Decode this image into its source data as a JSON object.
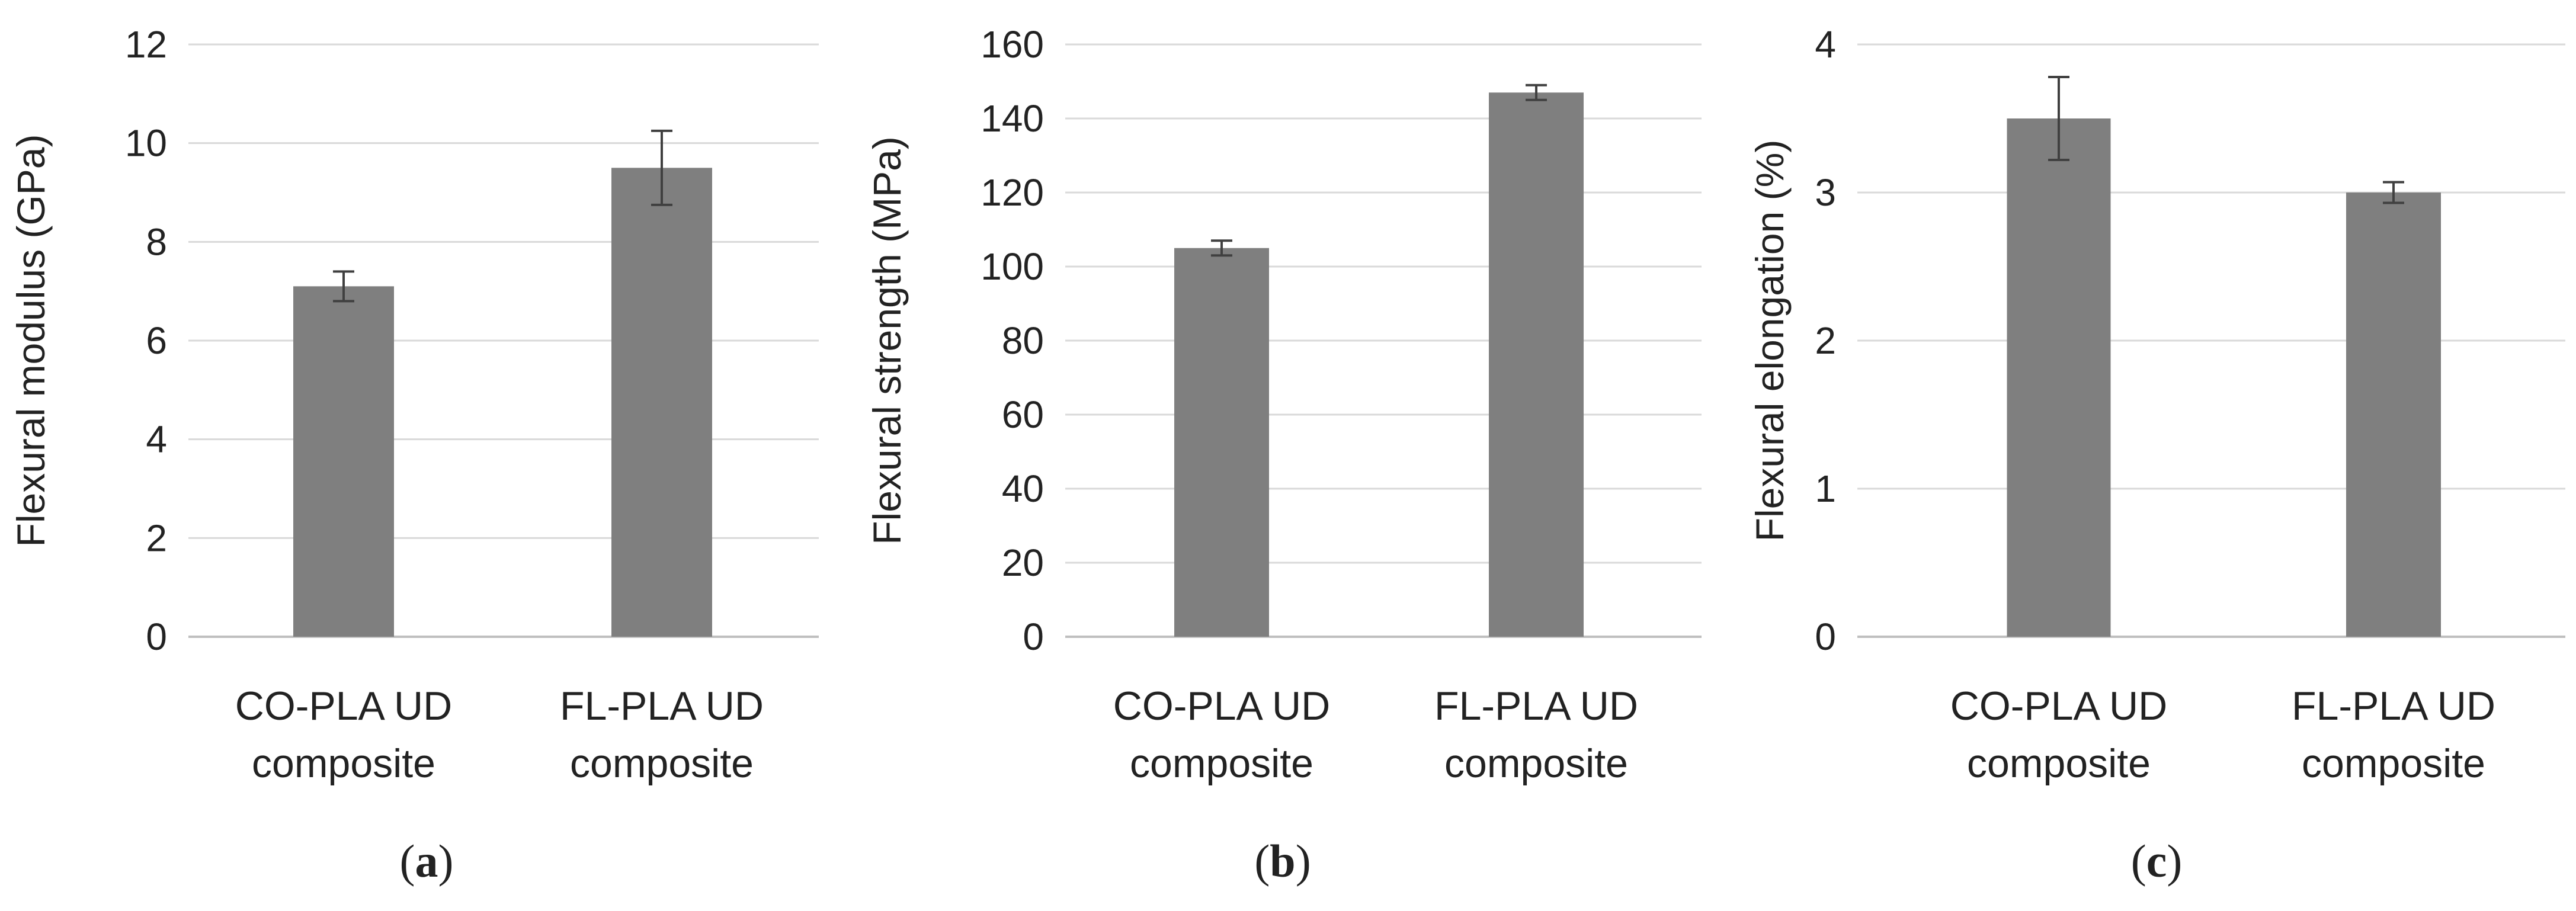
{
  "chart_data": [
    {
      "type": "bar",
      "panel_label": "a",
      "categories": [
        [
          "CO-PLA UD",
          "composite"
        ],
        [
          "FL-PLA UD",
          "composite"
        ]
      ],
      "values": [
        7.1,
        9.5
      ],
      "errors": [
        0.3,
        0.75
      ],
      "ylabel": "Flexural modulus (GPa)",
      "ylim": [
        0,
        12
      ],
      "yticks": [
        "0",
        "2",
        "4",
        "6",
        "8",
        "10",
        "12"
      ],
      "grid": true,
      "bar_color": "#7f7f7f"
    },
    {
      "type": "bar",
      "panel_label": "b",
      "categories": [
        [
          "CO-PLA UD",
          "composite"
        ],
        [
          "FL-PLA UD",
          "composite"
        ]
      ],
      "values": [
        105,
        147
      ],
      "errors": [
        2,
        2
      ],
      "ylabel": "Flexural strength (MPa)",
      "ylim": [
        0,
        160
      ],
      "yticks": [
        "0",
        "20",
        "40",
        "60",
        "80",
        "100",
        "120",
        "140",
        "160"
      ],
      "grid": true,
      "bar_color": "#7f7f7f"
    },
    {
      "type": "bar",
      "panel_label": "c",
      "categories": [
        [
          "CO-PLA UD",
          "composite"
        ],
        [
          "FL-PLA UD",
          "composite"
        ]
      ],
      "values": [
        3.5,
        3.0
      ],
      "errors": [
        0.28,
        0.07
      ],
      "ylabel": "Flexural elongation (%)",
      "ylim": [
        0,
        4
      ],
      "yticks": [
        "0",
        "1",
        "2",
        "3",
        "4"
      ],
      "grid": true,
      "bar_color": "#7f7f7f"
    }
  ]
}
